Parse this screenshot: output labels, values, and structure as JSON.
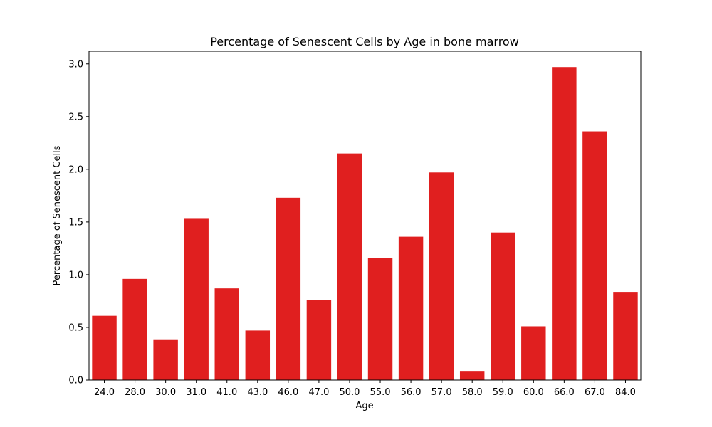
{
  "chart_data": {
    "type": "bar",
    "title": "Percentage of Senescent Cells by Age in bone marrow",
    "xlabel": "Age",
    "ylabel": "Percentage of Senescent Cells",
    "categories": [
      "24.0",
      "28.0",
      "30.0",
      "31.0",
      "41.0",
      "43.0",
      "46.0",
      "47.0",
      "50.0",
      "55.0",
      "56.0",
      "57.0",
      "58.0",
      "59.0",
      "60.0",
      "66.0",
      "67.0",
      "84.0"
    ],
    "values": [
      0.61,
      0.96,
      0.38,
      1.53,
      0.87,
      0.47,
      1.73,
      0.76,
      2.15,
      1.16,
      1.36,
      1.97,
      0.08,
      1.4,
      0.51,
      2.97,
      2.36,
      0.83
    ],
    "ylim": [
      0,
      3.12
    ],
    "yticks": [
      "0.0",
      "0.5",
      "1.0",
      "1.5",
      "2.0",
      "2.5",
      "3.0"
    ],
    "grid": false,
    "bar_color": "#e01f1f"
  }
}
